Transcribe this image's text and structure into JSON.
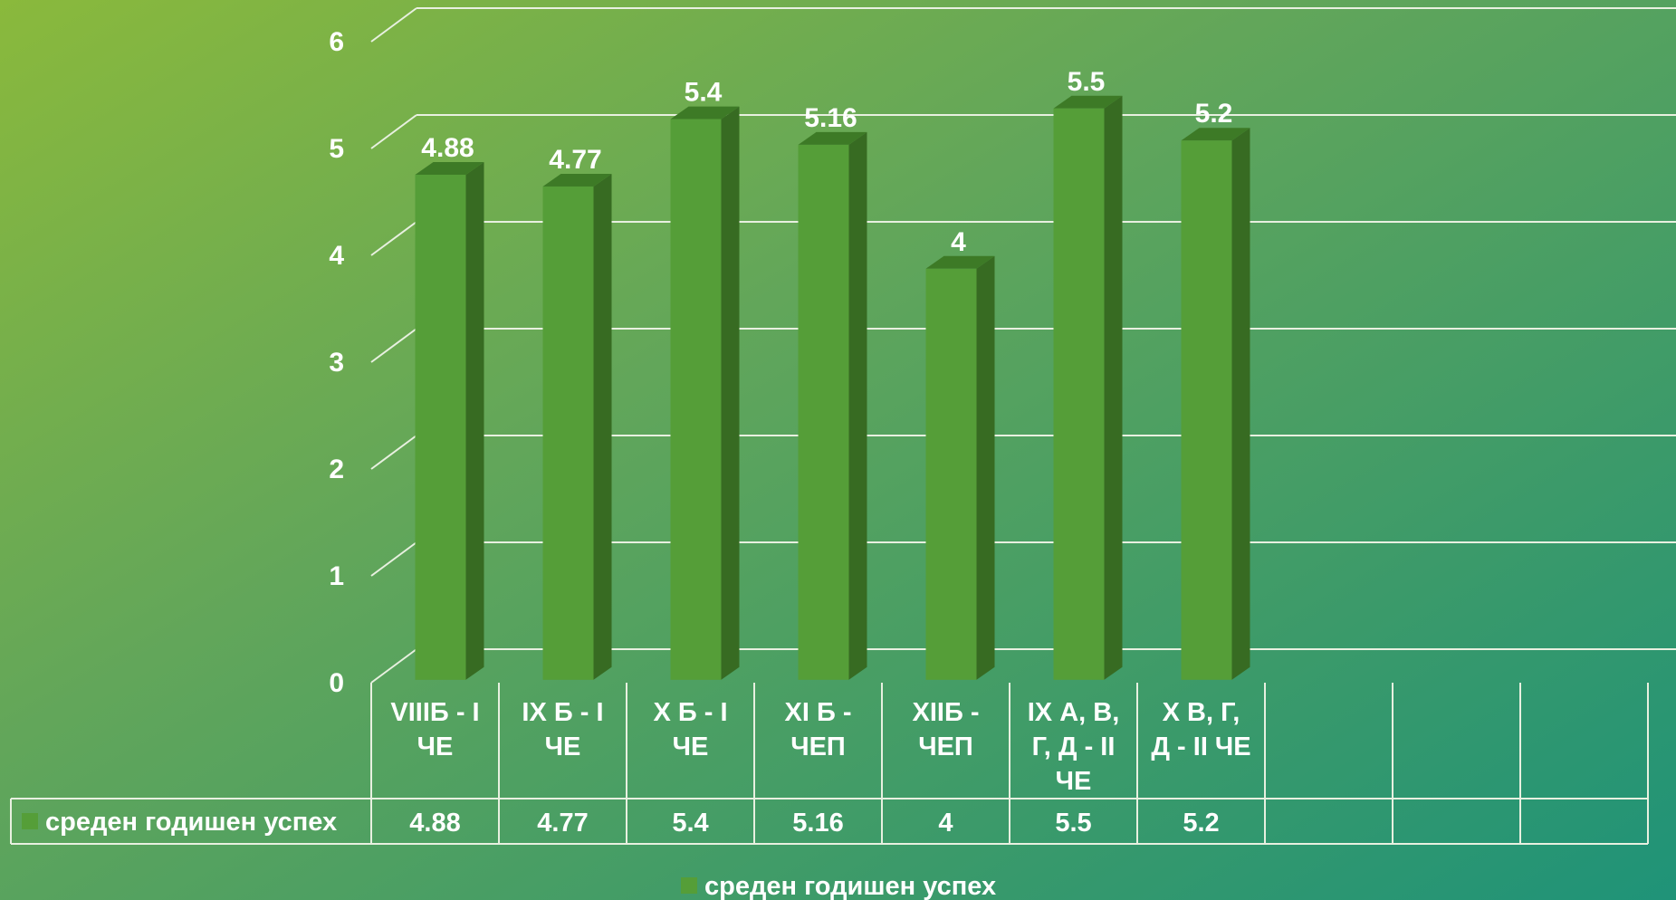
{
  "chart_data": {
    "type": "bar",
    "categories": [
      [
        "VIIIБ - I",
        "ЧЕ"
      ],
      [
        "IX Б - I",
        "ЧЕ"
      ],
      [
        "X Б - I",
        "ЧЕ"
      ],
      [
        "XI Б -",
        "ЧЕП"
      ],
      [
        "XIIБ -",
        "ЧЕП"
      ],
      [
        "IX А, В,",
        "Г, Д - II",
        "ЧЕ"
      ],
      [
        "X В, Г,",
        "Д - II ЧЕ"
      ]
    ],
    "series": [
      {
        "name": "среден годишен успех",
        "values": [
          4.88,
          4.77,
          5.4,
          5.16,
          4,
          5.5,
          5.2
        ],
        "value_labels": [
          "4.88",
          "4.77",
          "5.4",
          "5.16",
          "4",
          "5.5",
          "5.2"
        ],
        "color": "#559e38"
      }
    ],
    "empty_category_slots": 3,
    "ylim": [
      0,
      6
    ],
    "yticks": [
      "0",
      "1",
      "2",
      "3",
      "4",
      "5",
      "6"
    ],
    "grid": true,
    "style": "3d-column with data table",
    "data_table": true,
    "legend_position": "bottom",
    "legend_label": "среден годишен успех",
    "colors": {
      "bar_front": "#559e38",
      "bar_side": "#376b22",
      "bar_top": "#3d7a26",
      "grid": "#e8f0e0",
      "text": "#ffffff"
    }
  }
}
